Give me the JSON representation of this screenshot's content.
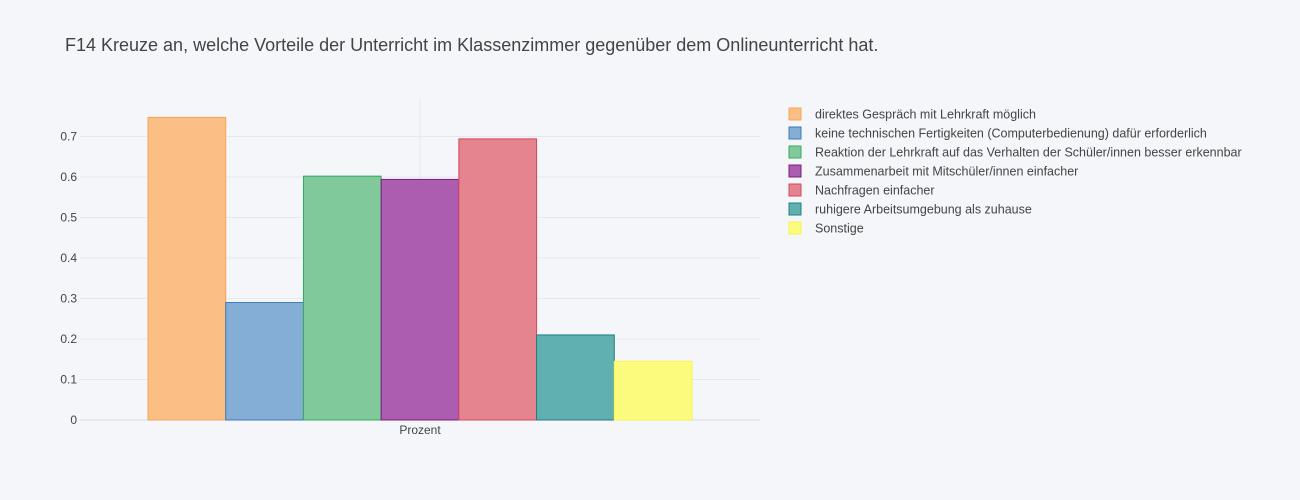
{
  "chart_data": {
    "type": "bar",
    "title": "F14 Kreuze an, welche Vorteile der Unterricht im Klassenzimmer gegenüber dem Onlineunterricht hat.",
    "xlabel": "",
    "ylabel": "",
    "categories": [
      "Prozent"
    ],
    "ylim": [
      0,
      0.79
    ],
    "yticks": [
      0,
      0.1,
      0.2,
      0.3,
      0.4,
      0.5,
      0.6,
      0.7
    ],
    "grid": true,
    "legend_position": "right",
    "series": [
      {
        "name": "direktes Gespräch mit Lehrkraft möglich",
        "values": [
          0.747
        ],
        "color": "#fbbf85",
        "stroke": "#f5a452"
      },
      {
        "name": "keine technischen Fertigkeiten (Computerbedienung) dafür erforderlich",
        "values": [
          0.29
        ],
        "color": "#84aed5",
        "stroke": "#3b7ab6"
      },
      {
        "name": "Reaktion der Lehrkraft auf das Verhalten der Schüler/innen besser erkennbar",
        "values": [
          0.602
        ],
        "color": "#80c99a",
        "stroke": "#3aa561"
      },
      {
        "name": "Zusammenarbeit mit Mitschüler/innen einfacher",
        "values": [
          0.594
        ],
        "color": "#ac5daf",
        "stroke": "#7a1f7e"
      },
      {
        "name": "Nachfragen einfacher",
        "values": [
          0.694
        ],
        "color": "#e5838f",
        "stroke": "#d4485a"
      },
      {
        "name": "ruhigere Arbeitsumgebung als zuhause",
        "values": [
          0.21
        ],
        "color": "#60b0b0",
        "stroke": "#1f7f7f"
      },
      {
        "name": "Sonstige",
        "values": [
          0.145
        ],
        "color": "#fcfb7e",
        "stroke": "#f7f44c"
      }
    ]
  }
}
